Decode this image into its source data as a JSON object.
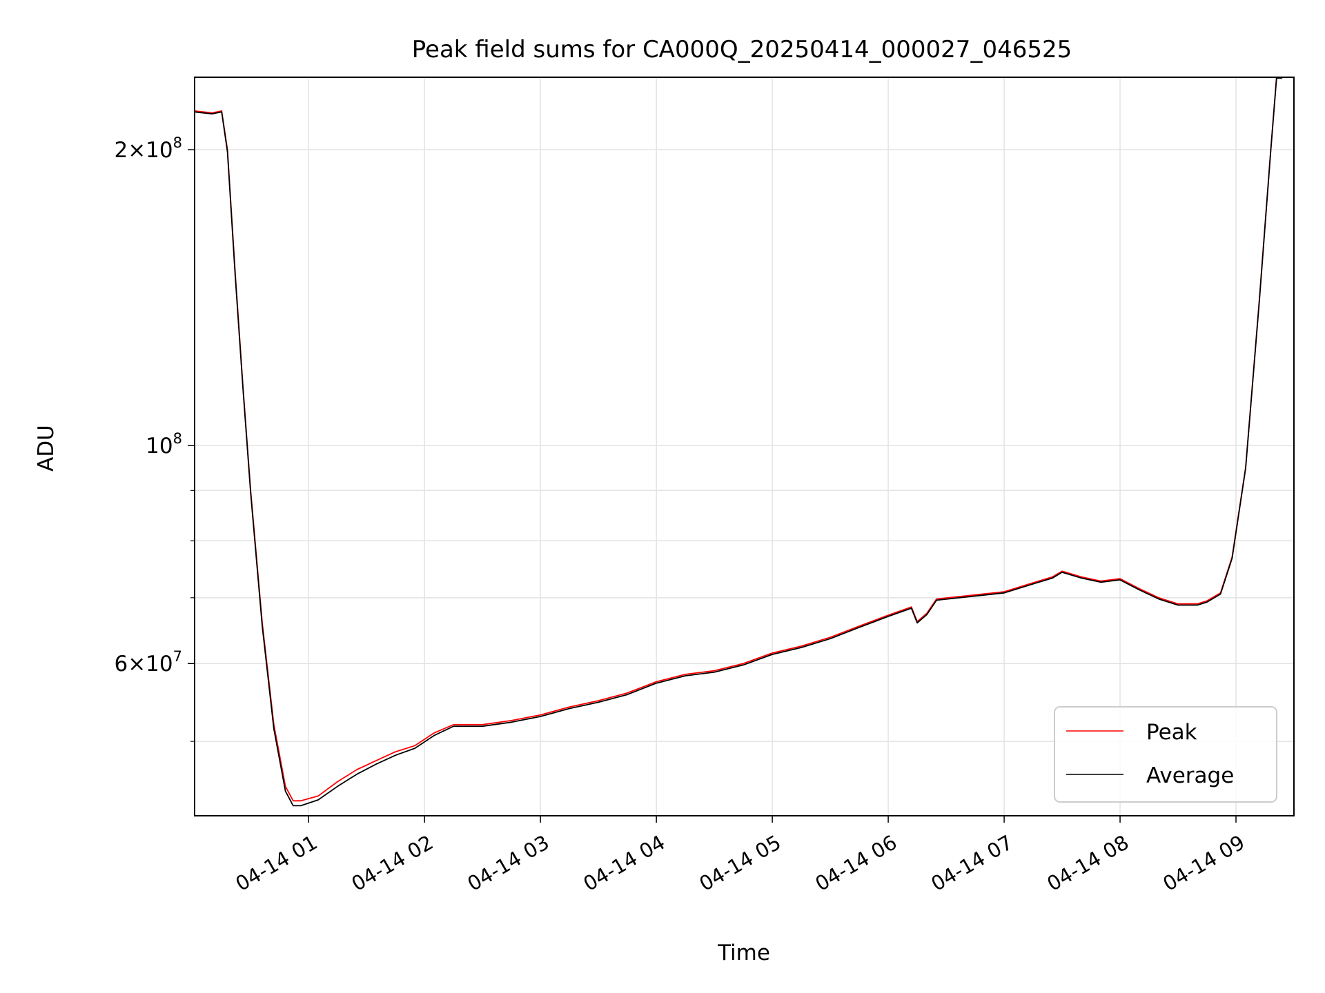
{
  "chart_data": {
    "type": "line",
    "title": "Peak field sums for CA000Q_20250414_000027_046525",
    "xlabel": "Time",
    "ylabel": "ADU",
    "y_scale": "log",
    "ylim": [
      42000000,
      237000000
    ],
    "xlim": [
      "04-14 00:01",
      "04-14 09:30"
    ],
    "grid": true,
    "legend_position": "lower-right",
    "x_ticks": [
      {
        "t": "04-14 01:00",
        "label": "04-14 01"
      },
      {
        "t": "04-14 02:00",
        "label": "04-14 02"
      },
      {
        "t": "04-14 03:00",
        "label": "04-14 03"
      },
      {
        "t": "04-14 04:00",
        "label": "04-14 04"
      },
      {
        "t": "04-14 05:00",
        "label": "04-14 05"
      },
      {
        "t": "04-14 06:00",
        "label": "04-14 06"
      },
      {
        "t": "04-14 07:00",
        "label": "04-14 07"
      },
      {
        "t": "04-14 08:00",
        "label": "04-14 08"
      },
      {
        "t": "04-14 09:00",
        "label": "04-14 09"
      }
    ],
    "y_ticks": [
      {
        "value": 200000000,
        "mant": "2",
        "exp": "8"
      },
      {
        "value": 100000000,
        "mant": "",
        "exp": "8"
      },
      {
        "value": 60000000,
        "mant": "6",
        "exp": "7"
      }
    ],
    "y_minor_ticks": [
      50000000,
      70000000,
      80000000,
      90000000
    ],
    "series": [
      {
        "name": "Peak",
        "color": "#ff0000",
        "x": [
          "04-14 00:01",
          "04-14 00:10",
          "04-14 00:15",
          "04-14 00:18",
          "04-14 00:22",
          "04-14 00:26",
          "04-14 00:30",
          "04-14 00:36",
          "04-14 00:42",
          "04-14 00:48",
          "04-14 00:52",
          "04-14 00:56",
          "04-14 01:05",
          "04-14 01:15",
          "04-14 01:25",
          "04-14 01:35",
          "04-14 01:45",
          "04-14 01:55",
          "04-14 02:05",
          "04-14 02:15",
          "04-14 02:30",
          "04-14 02:45",
          "04-14 03:00",
          "04-14 03:15",
          "04-14 03:30",
          "04-14 03:45",
          "04-14 04:00",
          "04-14 04:15",
          "04-14 04:30",
          "04-14 04:45",
          "04-14 05:00",
          "04-14 05:15",
          "04-14 05:30",
          "04-14 05:45",
          "04-14 06:00",
          "04-14 06:12",
          "04-14 06:15",
          "04-14 06:20",
          "04-14 06:25",
          "04-14 06:40",
          "04-14 07:00",
          "04-14 07:15",
          "04-14 07:25",
          "04-14 07:30",
          "04-14 07:40",
          "04-14 07:50",
          "04-14 08:00",
          "04-14 08:10",
          "04-14 08:20",
          "04-14 08:30",
          "04-14 08:40",
          "04-14 08:45",
          "04-14 08:52",
          "04-14 08:58",
          "04-14 09:05",
          "04-14 09:12",
          "04-14 09:18",
          "04-14 09:21",
          "04-14 09:24"
        ],
        "values": [
          219000000,
          218000000,
          219000000,
          200000000,
          150000000,
          115000000,
          90000000,
          66000000,
          52000000,
          45000000,
          43500000,
          43500000,
          44000000,
          45500000,
          46800000,
          47800000,
          48800000,
          49500000,
          51000000,
          52000000,
          52000000,
          52500000,
          53200000,
          54200000,
          55000000,
          56000000,
          57500000,
          58500000,
          59000000,
          60000000,
          61500000,
          62500000,
          63800000,
          65500000,
          67200000,
          68500000,
          66200000,
          67500000,
          69800000,
          70300000,
          71000000,
          72500000,
          73500000,
          74500000,
          73500000,
          72800000,
          73200000,
          71500000,
          70000000,
          69000000,
          69000000,
          69500000,
          70800000,
          77000000,
          95000000,
          140000000,
          200000000,
          237000000,
          237000000
        ]
      },
      {
        "name": "Average",
        "color": "#000000",
        "x": [
          "04-14 00:01",
          "04-14 00:10",
          "04-14 00:15",
          "04-14 00:18",
          "04-14 00:22",
          "04-14 00:26",
          "04-14 00:30",
          "04-14 00:36",
          "04-14 00:42",
          "04-14 00:48",
          "04-14 00:52",
          "04-14 00:56",
          "04-14 01:05",
          "04-14 01:15",
          "04-14 01:25",
          "04-14 01:35",
          "04-14 01:45",
          "04-14 01:55",
          "04-14 02:05",
          "04-14 02:15",
          "04-14 02:30",
          "04-14 02:45",
          "04-14 03:00",
          "04-14 03:15",
          "04-14 03:30",
          "04-14 03:45",
          "04-14 04:00",
          "04-14 04:15",
          "04-14 04:30",
          "04-14 04:45",
          "04-14 05:00",
          "04-14 05:15",
          "04-14 05:30",
          "04-14 05:45",
          "04-14 06:00",
          "04-14 06:12",
          "04-14 06:15",
          "04-14 06:20",
          "04-14 06:25",
          "04-14 06:40",
          "04-14 07:00",
          "04-14 07:15",
          "04-14 07:25",
          "04-14 07:30",
          "04-14 07:40",
          "04-14 07:50",
          "04-14 08:00",
          "04-14 08:10",
          "04-14 08:20",
          "04-14 08:30",
          "04-14 08:40",
          "04-14 08:45",
          "04-14 08:52",
          "04-14 08:58",
          "04-14 09:05",
          "04-14 09:12",
          "04-14 09:18",
          "04-14 09:21",
          "04-14 09:24"
        ],
        "values": [
          218500000,
          217500000,
          218500000,
          199000000,
          149000000,
          114500000,
          89500000,
          65500000,
          51500000,
          44500000,
          43000000,
          43000000,
          43600000,
          45000000,
          46300000,
          47400000,
          48400000,
          49200000,
          50700000,
          51800000,
          51800000,
          52300000,
          53000000,
          54000000,
          54800000,
          55800000,
          57300000,
          58300000,
          58800000,
          59800000,
          61300000,
          62300000,
          63600000,
          65300000,
          67000000,
          68300000,
          66000000,
          67300000,
          69600000,
          70100000,
          70800000,
          72300000,
          73300000,
          74300000,
          73300000,
          72600000,
          73000000,
          71300000,
          69800000,
          68800000,
          68800000,
          69300000,
          70600000,
          76800000,
          94800000,
          139500000,
          199500000,
          236500000,
          236500000
        ]
      }
    ]
  }
}
